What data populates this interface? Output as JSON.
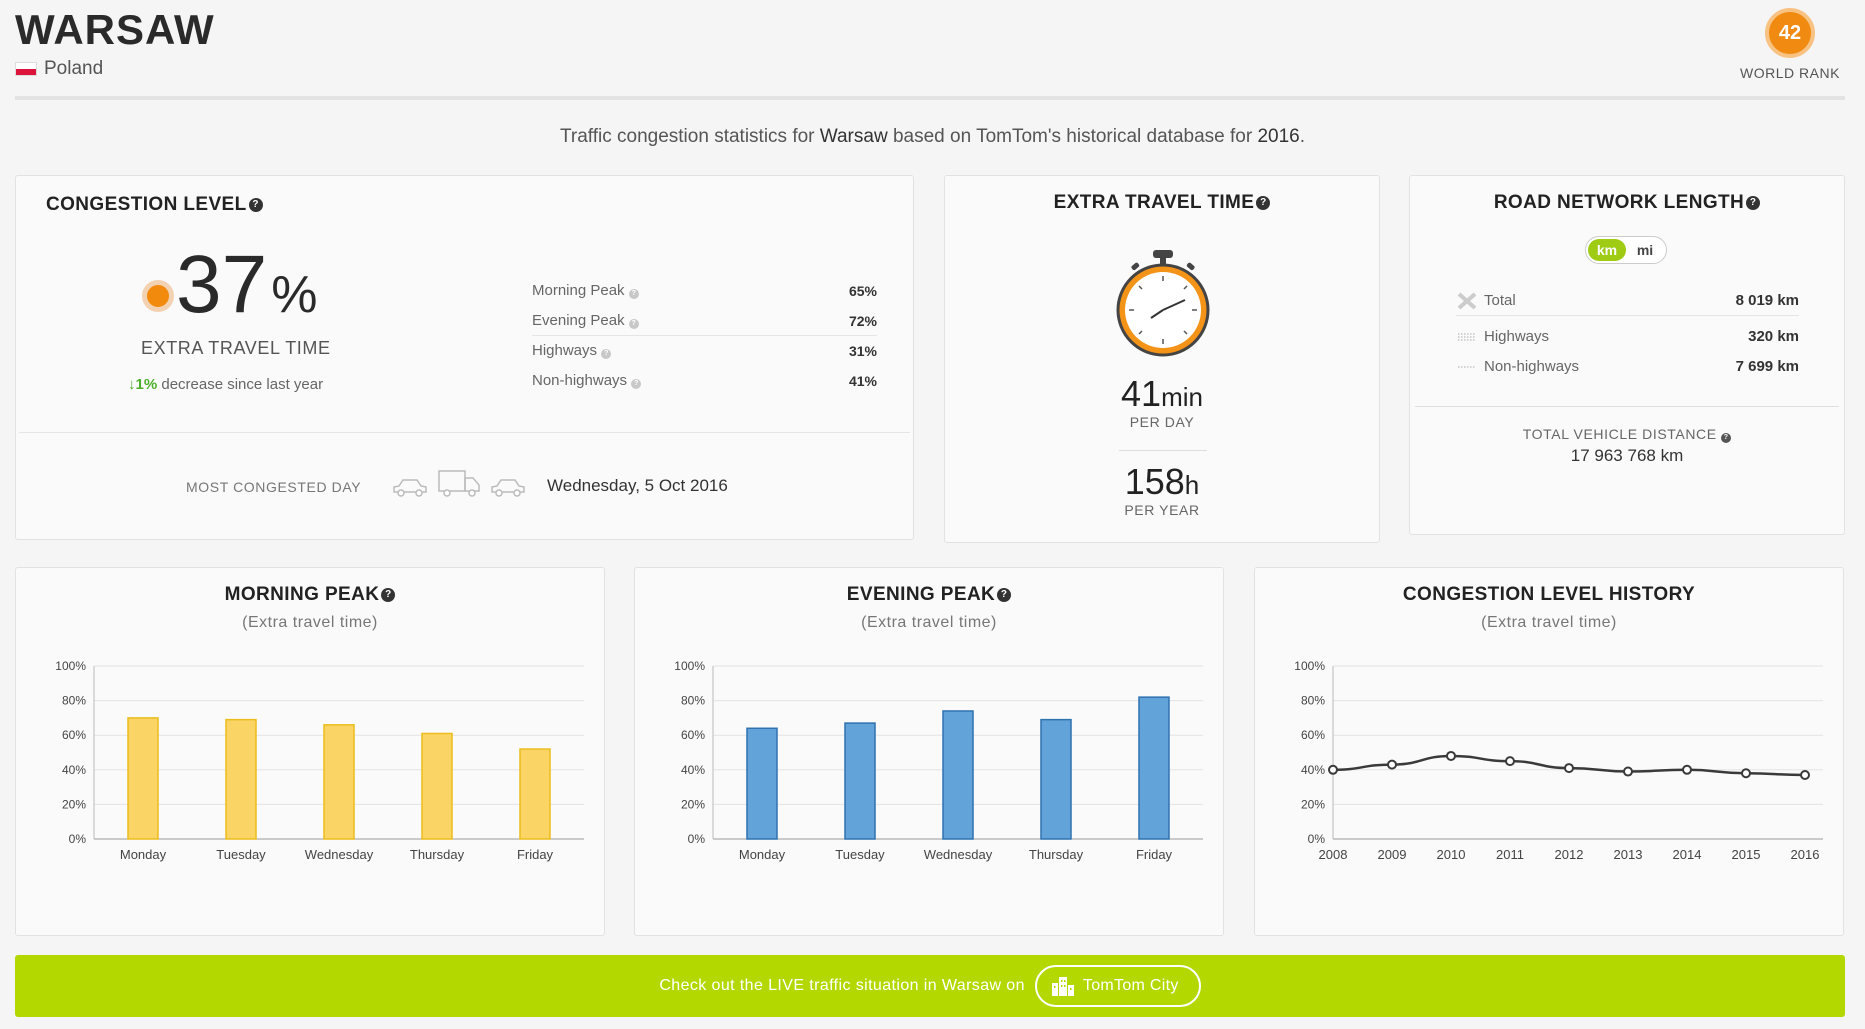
{
  "header": {
    "city": "WARSAW",
    "country": "Poland",
    "world_rank": "42",
    "world_rank_label": "WORLD RANK"
  },
  "intro": {
    "pre": "Traffic congestion statistics for ",
    "city": "Warsaw",
    "mid": " based on TomTom's historical database for ",
    "year": "2016",
    "post": "."
  },
  "congestion": {
    "title": "CONGESTION LEVEL",
    "value": "37",
    "unit": "%",
    "label": "EXTRA TRAVEL TIME",
    "change_value": "1%",
    "change_text": " decrease since last year",
    "peaks": [
      {
        "label": "Morning Peak",
        "value": "65%"
      },
      {
        "label": "Evening Peak",
        "value": "72%"
      },
      {
        "label": "Highways",
        "value": "31%"
      },
      {
        "label": "Non-highways",
        "value": "41%"
      }
    ],
    "most_congested_label": "MOST CONGESTED DAY",
    "most_congested_value": "Wednesday, 5 Oct 2016"
  },
  "extra_travel": {
    "title": "EXTRA TRAVEL TIME",
    "per_day_value": "41",
    "per_day_unit": "min",
    "per_day_label": "PER DAY",
    "per_year_value": "158",
    "per_year_unit": "h",
    "per_year_label": "PER YEAR"
  },
  "road_network": {
    "title": "ROAD NETWORK LENGTH",
    "unit_km": "km",
    "unit_mi": "mi",
    "rows": [
      {
        "label": "Total",
        "value": "8 019 km"
      },
      {
        "label": "Highways",
        "value": "320 km"
      },
      {
        "label": "Non-highways",
        "value": "7 699 km"
      }
    ],
    "total_distance_label": "TOTAL VEHICLE DISTANCE",
    "total_distance_value": "17 963 768 km"
  },
  "charts_text": {
    "morning_title": "MORNING PEAK",
    "evening_title": "EVENING PEAK",
    "history_title": "CONGESTION LEVEL HISTORY",
    "subtitle": "(Extra travel time)"
  },
  "chart_data": [
    {
      "type": "bar",
      "title": "MORNING PEAK",
      "subtitle": "(Extra travel time)",
      "categories": [
        "Monday",
        "Tuesday",
        "Wednesday",
        "Thursday",
        "Friday"
      ],
      "values": [
        70,
        69,
        66,
        61,
        52
      ],
      "ylim": [
        0,
        100
      ],
      "yticks": [
        "0%",
        "20%",
        "40%",
        "60%",
        "80%",
        "100%"
      ],
      "grid": true,
      "color": "#fad464",
      "stroke": "#ecbd1c"
    },
    {
      "type": "bar",
      "title": "EVENING PEAK",
      "subtitle": "(Extra travel time)",
      "categories": [
        "Monday",
        "Tuesday",
        "Wednesday",
        "Thursday",
        "Friday"
      ],
      "values": [
        64,
        67,
        74,
        69,
        82
      ],
      "ylim": [
        0,
        100
      ],
      "yticks": [
        "0%",
        "20%",
        "40%",
        "60%",
        "80%",
        "100%"
      ],
      "grid": true,
      "color": "#62a4da",
      "stroke": "#2e72b0"
    },
    {
      "type": "line",
      "title": "CONGESTION LEVEL HISTORY",
      "subtitle": "(Extra travel time)",
      "categories": [
        "2008",
        "2009",
        "2010",
        "2011",
        "2012",
        "2013",
        "2014",
        "2015",
        "2016"
      ],
      "values": [
        40,
        43,
        48,
        45,
        41,
        39,
        40,
        38,
        37
      ],
      "ylim": [
        0,
        100
      ],
      "yticks": [
        "0%",
        "20%",
        "40%",
        "60%",
        "80%",
        "100%"
      ],
      "grid": true,
      "color": "#3a3a3a"
    }
  ],
  "banner": {
    "text": "Check out the LIVE traffic situation in Warsaw on",
    "button": "TomTom City"
  },
  "colors": {
    "accent_orange": "#f28a0e",
    "green": "#b3d800",
    "morning_bar": "#fad464",
    "evening_bar": "#62a4da"
  }
}
